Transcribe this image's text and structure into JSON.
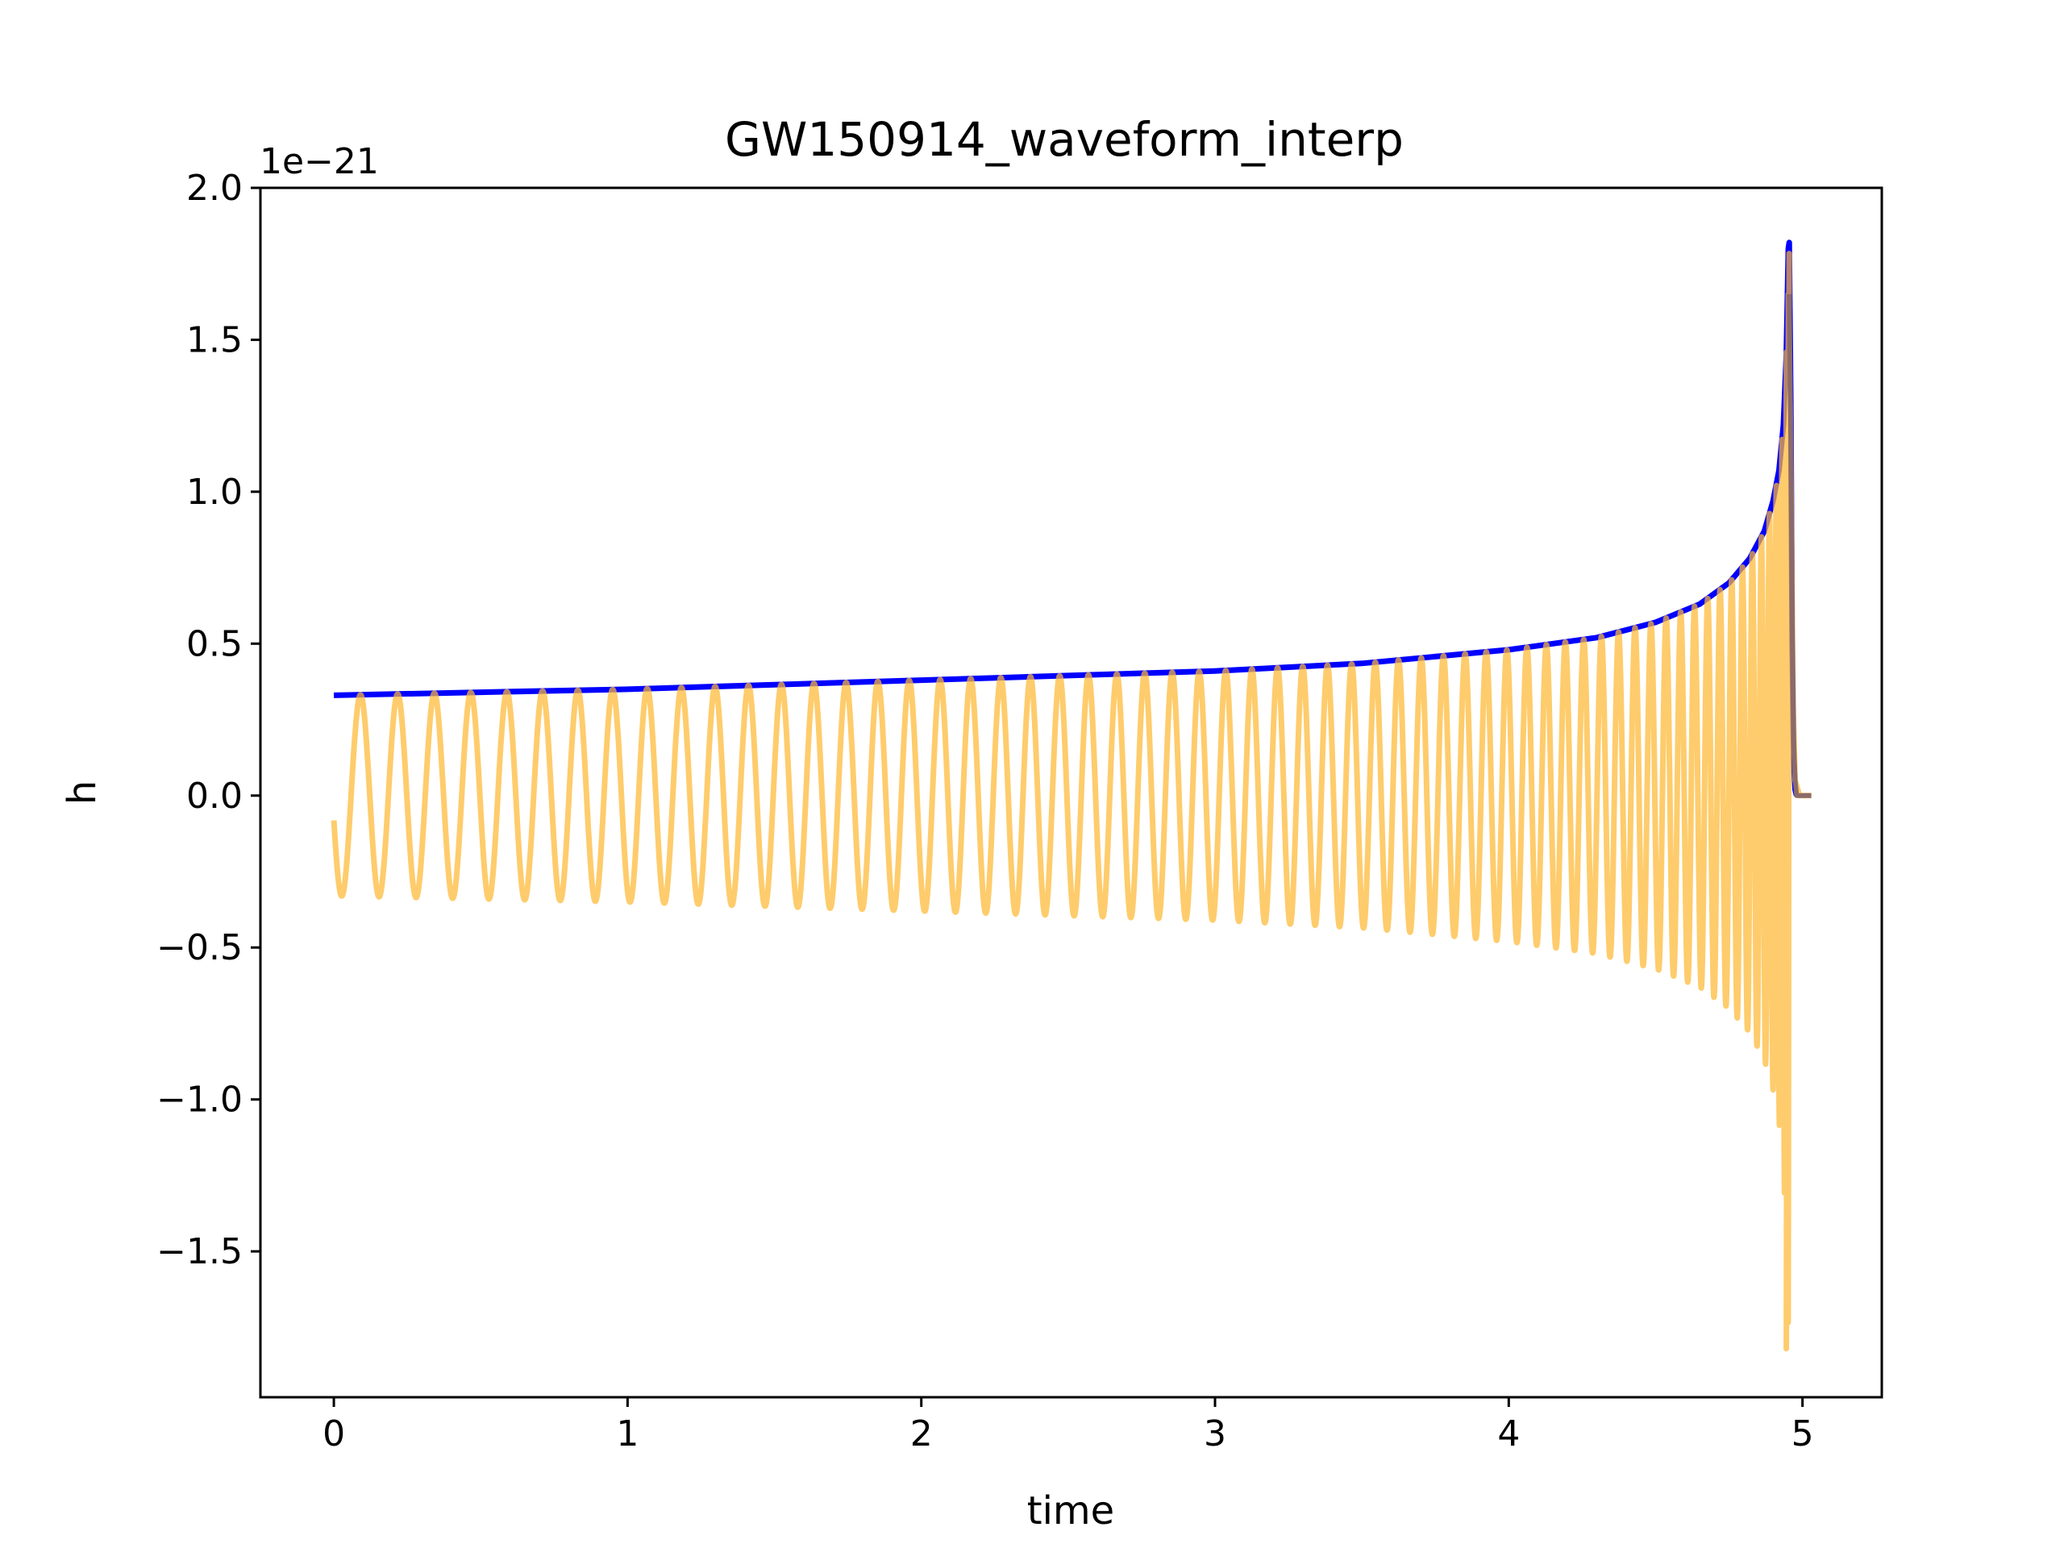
{
  "chart_data": {
    "type": "line",
    "title": "GW150914_waveform_interp",
    "xlabel": "time",
    "ylabel": "h",
    "y_offset_text": "1e−21",
    "xlim": [
      -0.25,
      5.27
    ],
    "ylim": [
      -1.98,
      2.0
    ],
    "x_ticks": [
      0,
      1,
      2,
      3,
      4,
      5
    ],
    "x_tick_labels": [
      "0",
      "1",
      "2",
      "3",
      "4",
      "5"
    ],
    "y_ticks": [
      -1.5,
      -1.0,
      -0.5,
      0.0,
      0.5,
      1.0,
      1.5,
      2.0
    ],
    "y_tick_labels": [
      "−1.5",
      "−1.0",
      "−0.5",
      "0.0",
      "0.5",
      "1.0",
      "1.5",
      "2.0"
    ],
    "grid": false,
    "series": [
      {
        "color": "#0000ff",
        "kind": "envelope",
        "x": [
          0,
          0.5,
          1.0,
          1.5,
          2.0,
          2.5,
          3.0,
          3.5,
          4.0,
          4.3,
          4.5,
          4.65,
          4.75,
          4.82,
          4.87,
          4.9,
          4.92,
          4.935,
          4.945,
          4.952,
          4.955,
          4.96,
          4.965,
          4.97,
          4.975,
          4.98
        ],
        "values": [
          0.33,
          0.34,
          0.35,
          0.365,
          0.38,
          0.395,
          0.41,
          0.435,
          0.48,
          0.52,
          0.57,
          0.63,
          0.7,
          0.78,
          0.87,
          0.97,
          1.07,
          1.22,
          1.45,
          1.8,
          1.82,
          1.3,
          0.5,
          0.12,
          0.02,
          0.0
        ]
      },
      {
        "color": "#fdb833",
        "kind": "chirp",
        "x_start": 0,
        "x_end": 5.03,
        "merger_time": 4.955,
        "freq_start": 12.5,
        "peak_positive": 1.65,
        "peak_negative": -1.82
      },
      {
        "color": "#8b6a6a",
        "kind": "ringdown",
        "x": [
          4.955,
          4.96,
          4.965,
          4.97,
          4.975,
          4.98,
          5.0,
          5.03
        ],
        "values": [
          1.65,
          1.2,
          0.55,
          0.18,
          0.05,
          0.0,
          0.0,
          0.0
        ]
      }
    ]
  }
}
